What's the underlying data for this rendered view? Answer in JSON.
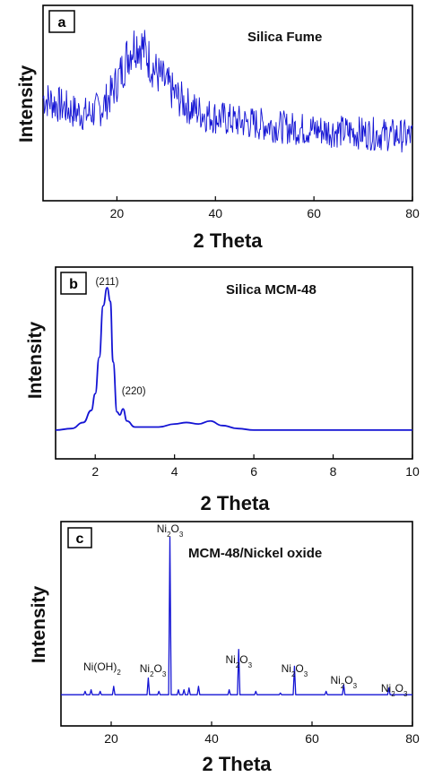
{
  "chart_data": [
    {
      "panel": "a",
      "type": "line",
      "title": "Silica Fume",
      "xlabel": "2 Theta",
      "ylabel": "Intensity",
      "xlim": [
        5,
        80
      ],
      "ylim": [
        0,
        1
      ],
      "xticks": [
        "20",
        "40",
        "60",
        "80"
      ],
      "x": [
        5,
        8,
        11,
        14,
        17,
        19,
        21,
        22,
        23,
        24,
        25,
        26,
        27,
        28,
        30,
        32,
        35,
        38,
        41,
        44,
        47,
        50,
        55,
        60,
        65,
        70,
        75,
        80
      ],
      "y": [
        0.52,
        0.48,
        0.44,
        0.42,
        0.46,
        0.55,
        0.68,
        0.76,
        0.82,
        0.85,
        0.83,
        0.78,
        0.72,
        0.67,
        0.6,
        0.53,
        0.46,
        0.42,
        0.4,
        0.38,
        0.37,
        0.36,
        0.34,
        0.33,
        0.32,
        0.31,
        0.3,
        0.29
      ],
      "grid": false,
      "color": "#1414d4"
    },
    {
      "panel": "b",
      "type": "line",
      "title": "Silica MCM-48",
      "xlabel": "2 Theta",
      "ylabel": "Intensity",
      "xlim": [
        1,
        10
      ],
      "ylim": [
        0,
        1
      ],
      "xticks": [
        "2",
        "4",
        "6",
        "8",
        "10"
      ],
      "x": [
        1.0,
        1.4,
        1.7,
        1.9,
        2.0,
        2.1,
        2.2,
        2.3,
        2.38,
        2.45,
        2.55,
        2.62,
        2.7,
        2.8,
        3.0,
        3.3,
        3.6,
        4.0,
        4.3,
        4.6,
        4.9,
        5.2,
        5.6,
        6.0,
        7.0,
        8.0,
        9.0,
        10.0
      ],
      "y": [
        0.0,
        0.01,
        0.05,
        0.13,
        0.24,
        0.48,
        0.82,
        0.94,
        0.85,
        0.45,
        0.12,
        0.1,
        0.14,
        0.06,
        0.02,
        0.02,
        0.02,
        0.04,
        0.05,
        0.04,
        0.06,
        0.03,
        0.01,
        0.0,
        0.0,
        0.0,
        0.0,
        0.0
      ],
      "annotations": [
        {
          "text": "(211)",
          "x": 2.3
        },
        {
          "text": "(220)",
          "x": 2.7
        }
      ],
      "grid": false,
      "color": "#1414d4"
    },
    {
      "panel": "c",
      "type": "line",
      "title": "MCM-48/Nickel oxide",
      "xlabel": "2 Theta",
      "ylabel": "Intensity",
      "xlim": [
        10,
        80
      ],
      "ylim": [
        0,
        1
      ],
      "xticks": [
        "20",
        "40",
        "60",
        "80"
      ],
      "baseline": 0.04,
      "peaks": [
        {
          "x": 14.8,
          "y": 0.06
        },
        {
          "x": 16.0,
          "y": 0.07
        },
        {
          "x": 17.8,
          "y": 0.06
        },
        {
          "x": 20.5,
          "y": 0.09
        },
        {
          "x": 27.4,
          "y": 0.14
        },
        {
          "x": 29.5,
          "y": 0.06
        },
        {
          "x": 31.7,
          "y": 0.98
        },
        {
          "x": 33.4,
          "y": 0.07
        },
        {
          "x": 34.5,
          "y": 0.07
        },
        {
          "x": 35.5,
          "y": 0.08
        },
        {
          "x": 37.4,
          "y": 0.09
        },
        {
          "x": 43.5,
          "y": 0.07
        },
        {
          "x": 45.4,
          "y": 0.31
        },
        {
          "x": 48.8,
          "y": 0.06
        },
        {
          "x": 53.7,
          "y": 0.05
        },
        {
          "x": 56.5,
          "y": 0.21
        },
        {
          "x": 62.8,
          "y": 0.06
        },
        {
          "x": 66.3,
          "y": 0.1
        },
        {
          "x": 75.3,
          "y": 0.08
        }
      ],
      "annotations": [
        {
          "text": "Ni(OH)2",
          "x": 18.2
        },
        {
          "text": "Ni2O3",
          "x": 27.6
        },
        {
          "text": "Ni2O3",
          "x": 31.7
        },
        {
          "text": "Ni2O3",
          "x": 45.4
        },
        {
          "text": "Ni2O3",
          "x": 56.5
        },
        {
          "text": "Ni2O3",
          "x": 66.3
        },
        {
          "text": "Ni2O3",
          "x": 75.3
        }
      ],
      "grid": false,
      "color": "#1414d4"
    }
  ]
}
